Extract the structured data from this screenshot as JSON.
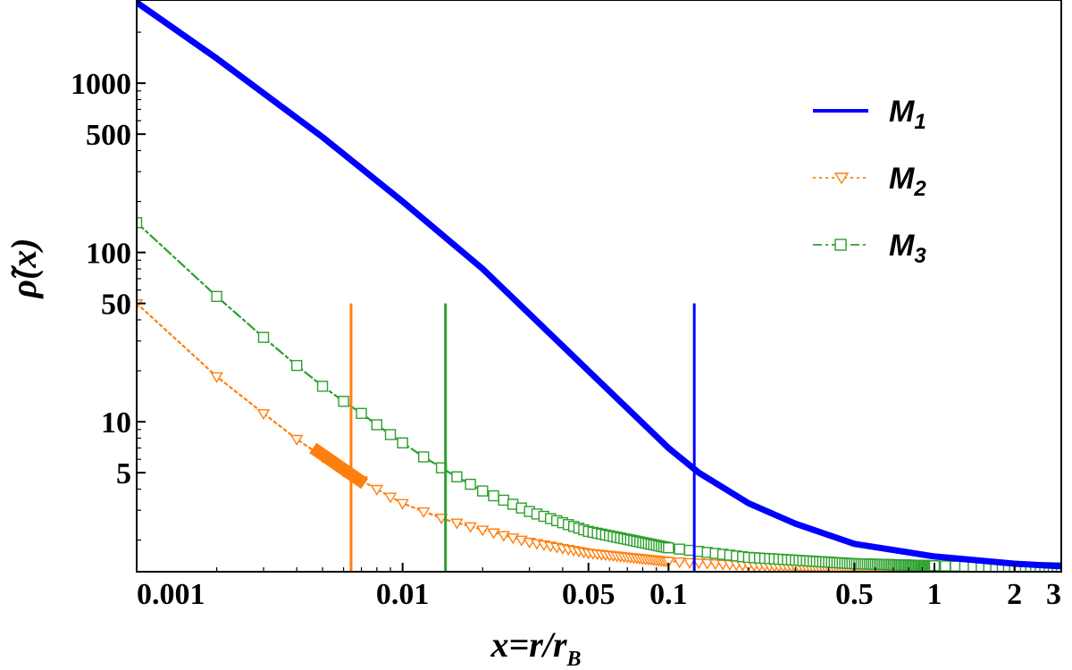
{
  "chart_data": {
    "type": "line",
    "x_scale": "log",
    "y_scale": "log",
    "xlim": [
      0.001,
      3
    ],
    "ylim": [
      1.3,
      3100
    ],
    "xlabel": "x=r/r",
    "xlabel_sub": "B",
    "ylabel": "ρ̃(x)",
    "x_ticks": [
      0.001,
      0.01,
      0.05,
      0.1,
      0.5,
      1,
      2,
      3
    ],
    "x_tick_labels": [
      "0.001",
      "0.01",
      "0.05",
      "0.1",
      "0.5",
      "1",
      "2",
      "3"
    ],
    "y_ticks": [
      5,
      10,
      50,
      100,
      500,
      1000
    ],
    "y_tick_labels": [
      "5",
      "10",
      "50",
      "100",
      "500",
      "1000"
    ],
    "grid": false,
    "legend_position": "top-right",
    "series": [
      {
        "name": "M",
        "name_sub": "1",
        "color": "#0000ff",
        "style": "solid-thick",
        "marker": "none",
        "x": [
          0.001,
          0.002,
          0.005,
          0.01,
          0.02,
          0.05,
          0.1,
          0.13,
          0.2,
          0.3,
          0.5,
          1,
          2,
          3
        ],
        "y": [
          3000,
          1400,
          480,
          200,
          80,
          20,
          7.0,
          5.0,
          3.3,
          2.5,
          1.9,
          1.6,
          1.45,
          1.4
        ]
      },
      {
        "name": "M",
        "name_sub": "2",
        "color": "#ff7f0e",
        "style": "dotted",
        "marker": "triangle-down",
        "x": [
          0.001,
          0.002,
          0.003,
          0.004,
          0.005,
          0.006,
          0.007,
          0.008,
          0.009,
          0.01,
          0.012,
          0.015,
          0.02,
          0.03,
          0.05,
          0.1,
          0.2,
          0.5,
          1,
          2,
          3
        ],
        "y": [
          50,
          18.5,
          11.2,
          7.9,
          6.2,
          5.1,
          4.5,
          4.0,
          3.6,
          3.3,
          2.95,
          2.6,
          2.3,
          1.95,
          1.68,
          1.5,
          1.42,
          1.37,
          1.35,
          1.34,
          1.33
        ]
      },
      {
        "name": "M",
        "name_sub": "3",
        "color": "#2ca02c",
        "style": "dash-dot",
        "marker": "square",
        "x": [
          0.001,
          0.002,
          0.003,
          0.004,
          0.005,
          0.006,
          0.007,
          0.008,
          0.009,
          0.01,
          0.012,
          0.015,
          0.02,
          0.03,
          0.05,
          0.1,
          0.2,
          0.5,
          1,
          2,
          3
        ],
        "y": [
          150,
          55,
          31.5,
          21.5,
          16.2,
          13.2,
          11.2,
          9.6,
          8.4,
          7.5,
          6.2,
          5.0,
          3.9,
          2.95,
          2.25,
          1.8,
          1.58,
          1.45,
          1.41,
          1.38,
          1.37
        ]
      }
    ],
    "vertical_markers": [
      {
        "x": 0.0064,
        "y_top": 50,
        "color": "#ff7f0e"
      },
      {
        "x": 0.0145,
        "y_top": 50,
        "color": "#2ca02c"
      },
      {
        "x": 0.125,
        "y_top": 50,
        "color": "#0000ff"
      }
    ],
    "highlight_segment": {
      "color": "#ff7f0e",
      "x": [
        0.0046,
        0.0072
      ],
      "y": [
        7.0,
        4.3
      ]
    }
  }
}
